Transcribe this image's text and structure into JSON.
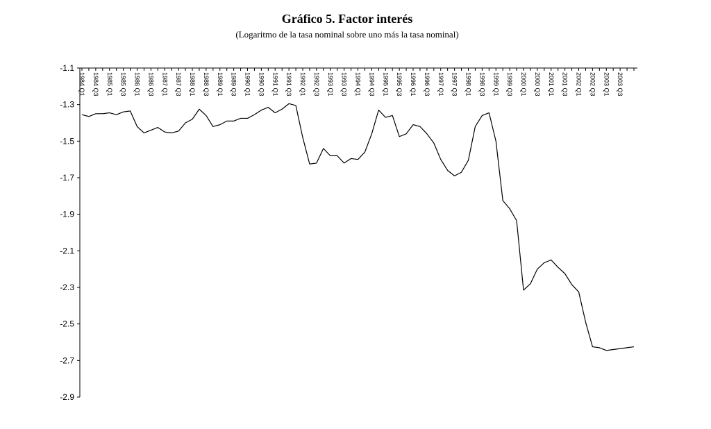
{
  "chart_data": {
    "type": "line",
    "title": "Gráfico 5. Factor interés",
    "subtitle": "(Logaritmo de la tasa nominal sobre uno más la tasa nominal)",
    "xlabel": "",
    "ylabel": "",
    "ylim": [
      -2.9,
      -1.1
    ],
    "yticks": [
      -1.1,
      -1.3,
      -1.5,
      -1.7,
      -1.9,
      -2.1,
      -2.3,
      -2.5,
      -2.7,
      -2.9
    ],
    "ytick_labels": [
      "-1.1",
      "-1.3",
      "-1.5",
      "-1.7",
      "-1.9",
      "-2.1",
      "-2.3",
      "-2.5",
      "-2.7",
      "-2.9"
    ],
    "x_tick_labels": [
      "1984 Q1",
      "1984 Q3",
      "1985 Q1",
      "1985 Q3",
      "1986 Q1",
      "1986 Q3",
      "1987 Q1",
      "1987 Q3",
      "1988 Q1",
      "1988 Q3",
      "1989 Q1",
      "1989 Q3",
      "1990 Q1",
      "1990 Q3",
      "1991 Q1",
      "1991 Q3",
      "1992 Q1",
      "1992 Q3",
      "1993 Q1",
      "1993 Q3",
      "1994 Q1",
      "1994 Q3",
      "1995 Q1",
      "1995 Q3",
      "1996 Q1",
      "1996 Q3",
      "1997 Q1",
      "1997 Q3",
      "1998 Q1",
      "1998 Q3",
      "1999 Q1",
      "1999 Q3",
      "2000 Q1",
      "2000 Q3",
      "2001 Q1",
      "2001 Q3",
      "2002 Q1",
      "2002 Q3",
      "2003 Q1",
      "2003 Q3"
    ],
    "x": [
      "1984 Q1",
      "1984 Q2",
      "1984 Q3",
      "1984 Q4",
      "1985 Q1",
      "1985 Q2",
      "1985 Q3",
      "1985 Q4",
      "1986 Q1",
      "1986 Q2",
      "1986 Q3",
      "1986 Q4",
      "1987 Q1",
      "1987 Q2",
      "1987 Q3",
      "1987 Q4",
      "1988 Q1",
      "1988 Q2",
      "1988 Q3",
      "1988 Q4",
      "1989 Q1",
      "1989 Q2",
      "1989 Q3",
      "1989 Q4",
      "1990 Q1",
      "1990 Q2",
      "1990 Q3",
      "1990 Q4",
      "1991 Q1",
      "1991 Q2",
      "1991 Q3",
      "1991 Q4",
      "1992 Q1",
      "1992 Q2",
      "1992 Q3",
      "1992 Q4",
      "1993 Q1",
      "1993 Q2",
      "1993 Q3",
      "1993 Q4",
      "1994 Q1",
      "1994 Q2",
      "1994 Q3",
      "1994 Q4",
      "1995 Q1",
      "1995 Q2",
      "1995 Q3",
      "1995 Q4",
      "1996 Q1",
      "1996 Q2",
      "1996 Q3",
      "1996 Q4",
      "1997 Q1",
      "1997 Q2",
      "1997 Q3",
      "1997 Q4",
      "1998 Q1",
      "1998 Q2",
      "1998 Q3",
      "1998 Q4",
      "1999 Q1",
      "1999 Q2",
      "1999 Q3",
      "1999 Q4",
      "2000 Q1",
      "2000 Q2",
      "2000 Q3",
      "2000 Q4",
      "2001 Q1",
      "2001 Q2",
      "2001 Q3",
      "2001 Q4",
      "2002 Q1",
      "2002 Q2",
      "2002 Q3",
      "2002 Q4",
      "2003 Q1",
      "2003 Q2",
      "2003 Q3",
      "2003 Q4",
      "2004 Q1"
    ],
    "series": [
      {
        "values": [
          -1.355,
          -1.365,
          -1.35,
          -1.35,
          -1.345,
          -1.355,
          -1.34,
          -1.335,
          -1.42,
          -1.455,
          -1.44,
          -1.425,
          -1.45,
          -1.455,
          -1.445,
          -1.4,
          -1.38,
          -1.325,
          -1.36,
          -1.42,
          -1.41,
          -1.39,
          -1.39,
          -1.375,
          -1.375,
          -1.355,
          -1.33,
          -1.315,
          -1.345,
          -1.325,
          -1.295,
          -1.305,
          -1.48,
          -1.625,
          -1.62,
          -1.54,
          -1.58,
          -1.58,
          -1.62,
          -1.595,
          -1.6,
          -1.56,
          -1.46,
          -1.33,
          -1.37,
          -1.36,
          -1.475,
          -1.46,
          -1.41,
          -1.42,
          -1.46,
          -1.51,
          -1.6,
          -1.66,
          -1.69,
          -1.67,
          -1.605,
          -1.42,
          -1.36,
          -1.345,
          -1.5,
          -1.825,
          -1.87,
          -1.935,
          -2.315,
          -2.28,
          -2.2,
          -2.165,
          -2.15,
          -2.19,
          -2.225,
          -2.285,
          -2.325,
          -2.49,
          -2.625,
          -2.63,
          -2.645,
          -2.64,
          -2.635,
          -2.63,
          -2.625
        ]
      }
    ],
    "grid": false,
    "legend": "none",
    "line_color": "#000000"
  }
}
